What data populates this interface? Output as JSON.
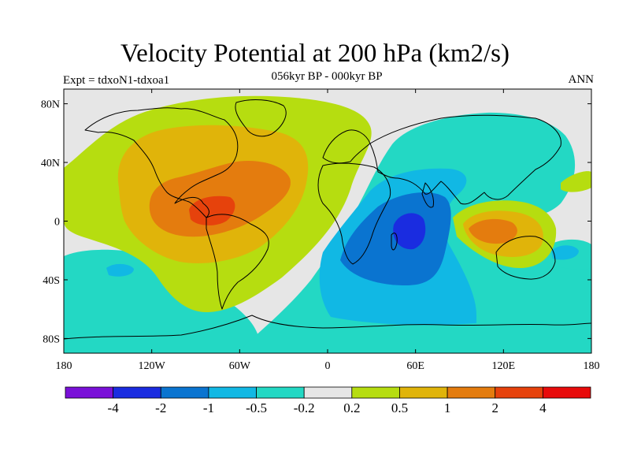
{
  "title": "Velocity Potential at 200 hPa (km2/s)",
  "subtitle": "056kyr BP - 000kyr BP",
  "experiment": "Expt = tdxoN1-tdxoa1",
  "season": "ANN",
  "map": {
    "projection": "cylindrical equidistant",
    "lon_range": [
      -180,
      180
    ],
    "lat_range": [
      -90,
      90
    ],
    "x_ticks": [
      {
        "lon": -180,
        "label": "180"
      },
      {
        "lon": -120,
        "label": "120W"
      },
      {
        "lon": -60,
        "label": "60W"
      },
      {
        "lon": 0,
        "label": "0"
      },
      {
        "lon": 60,
        "label": "60E"
      },
      {
        "lon": 120,
        "label": "120E"
      },
      {
        "lon": 180,
        "label": "180"
      }
    ],
    "y_ticks": [
      {
        "lat": 80,
        "label": "80N"
      },
      {
        "lat": 40,
        "label": "40N"
      },
      {
        "lat": 0,
        "label": "0"
      },
      {
        "lat": -40,
        "label": "40S"
      },
      {
        "lat": -80,
        "label": "80S"
      }
    ],
    "background_color": "#e6e6e6"
  },
  "colorbar": {
    "colors": [
      "#7a10d8",
      "#1a2ce0",
      "#0a74d0",
      "#11b8e4",
      "#23d8c4",
      "#e6e6e6",
      "#b6dd10",
      "#e0b40a",
      "#e47c0e",
      "#e6420c",
      "#e80b0b"
    ],
    "labels": [
      "-4",
      "-2",
      "-1",
      "-0.5",
      "-0.2",
      "0.2",
      "0.5",
      "1",
      "2",
      "4"
    ]
  },
  "regions": [
    {
      "name": "americas-low-contour",
      "level": 0.2,
      "color": "#b6dd10"
    },
    {
      "name": "americas-mid-contour",
      "level": 0.5,
      "color": "#e0b40a"
    },
    {
      "name": "americas-core-contour",
      "level": 1,
      "color": "#e47c0e"
    },
    {
      "name": "americas-peak-contour",
      "level": 2,
      "color": "#e6420c"
    },
    {
      "name": "indian-ocean-outer-contour",
      "level": -0.2,
      "color": "#23d8c4"
    },
    {
      "name": "indian-ocean-mid-contour",
      "level": -0.5,
      "color": "#11b8e4"
    },
    {
      "name": "indian-ocean-inner-contour",
      "level": -1,
      "color": "#0a74d0"
    },
    {
      "name": "indian-ocean-core-contour",
      "level": -2,
      "color": "#1a2ce0"
    },
    {
      "name": "maritime-continent-outer-contour",
      "level": 0.2,
      "color": "#b6dd10"
    },
    {
      "name": "maritime-continent-mid-contour",
      "level": 0.5,
      "color": "#e0b40a"
    },
    {
      "name": "maritime-continent-core-contour",
      "level": 1,
      "color": "#e47c0e"
    }
  ]
}
